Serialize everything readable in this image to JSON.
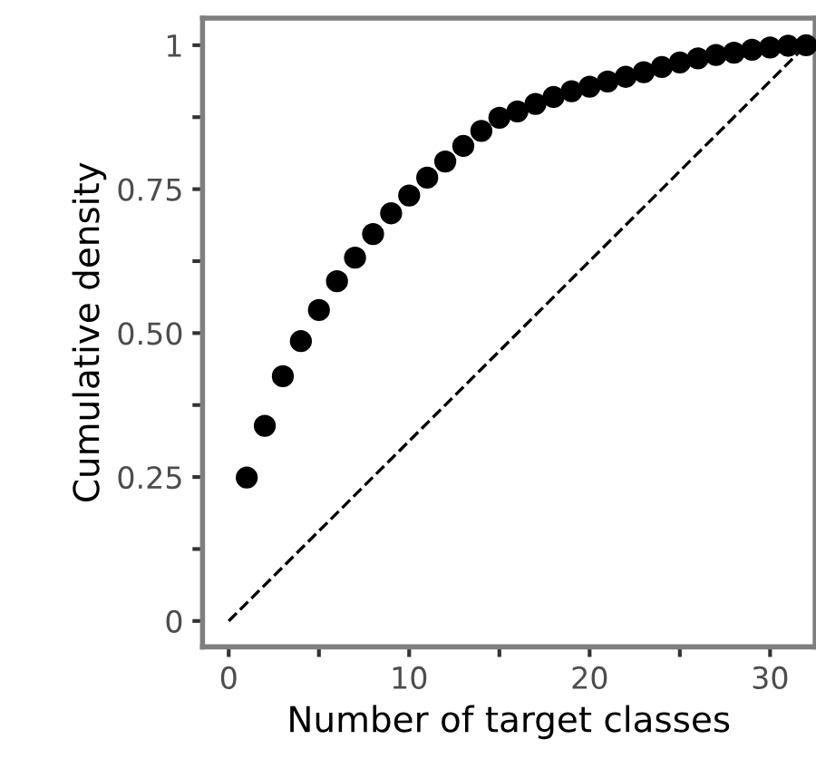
{
  "chart_data": {
    "type": "scatter",
    "xlabel": "Number of target classes",
    "ylabel": "Cumulative density",
    "xlim": [
      -1.45,
      32.5
    ],
    "ylim": [
      -0.045,
      1.047
    ],
    "xticks": [
      0,
      {
        "value": 5,
        "label": null
      },
      10,
      {
        "value": 15,
        "label": null
      },
      20,
      {
        "value": 25,
        "label": null
      },
      30
    ],
    "yticks": [
      0,
      {
        "value": 0.125,
        "label": null
      },
      0.25,
      {
        "value": 0.375,
        "label": null
      },
      {
        "value": 0.5,
        "label": "0.50"
      },
      {
        "value": 0.625,
        "label": null
      },
      0.75,
      {
        "value": 0.875,
        "label": null
      },
      1
    ],
    "grid": false,
    "legend": false,
    "series": [
      {
        "color": "#000000",
        "marker": "circle",
        "x": [
          1,
          2,
          3,
          4,
          5,
          6,
          7,
          8,
          9,
          10,
          11,
          12,
          13,
          14,
          15,
          16,
          17,
          18,
          19,
          20,
          21,
          22,
          23,
          24,
          25,
          26,
          27,
          28,
          29,
          30,
          31,
          32
        ],
        "values": [
          0.249,
          0.339,
          0.425,
          0.486,
          0.54,
          0.59,
          0.631,
          0.672,
          0.708,
          0.739,
          0.77,
          0.798,
          0.825,
          0.851,
          0.874,
          0.885,
          0.898,
          0.91,
          0.92,
          0.928,
          0.937,
          0.945,
          0.953,
          0.962,
          0.97,
          0.977,
          0.983,
          0.987,
          0.992,
          0.996,
          0.999,
          1.0
        ]
      },
      {
        "type": "line",
        "color": "#000000",
        "line_style": "dashed",
        "marker": "none",
        "x": [
          0,
          32
        ],
        "values": [
          0,
          1
        ]
      }
    ]
  }
}
